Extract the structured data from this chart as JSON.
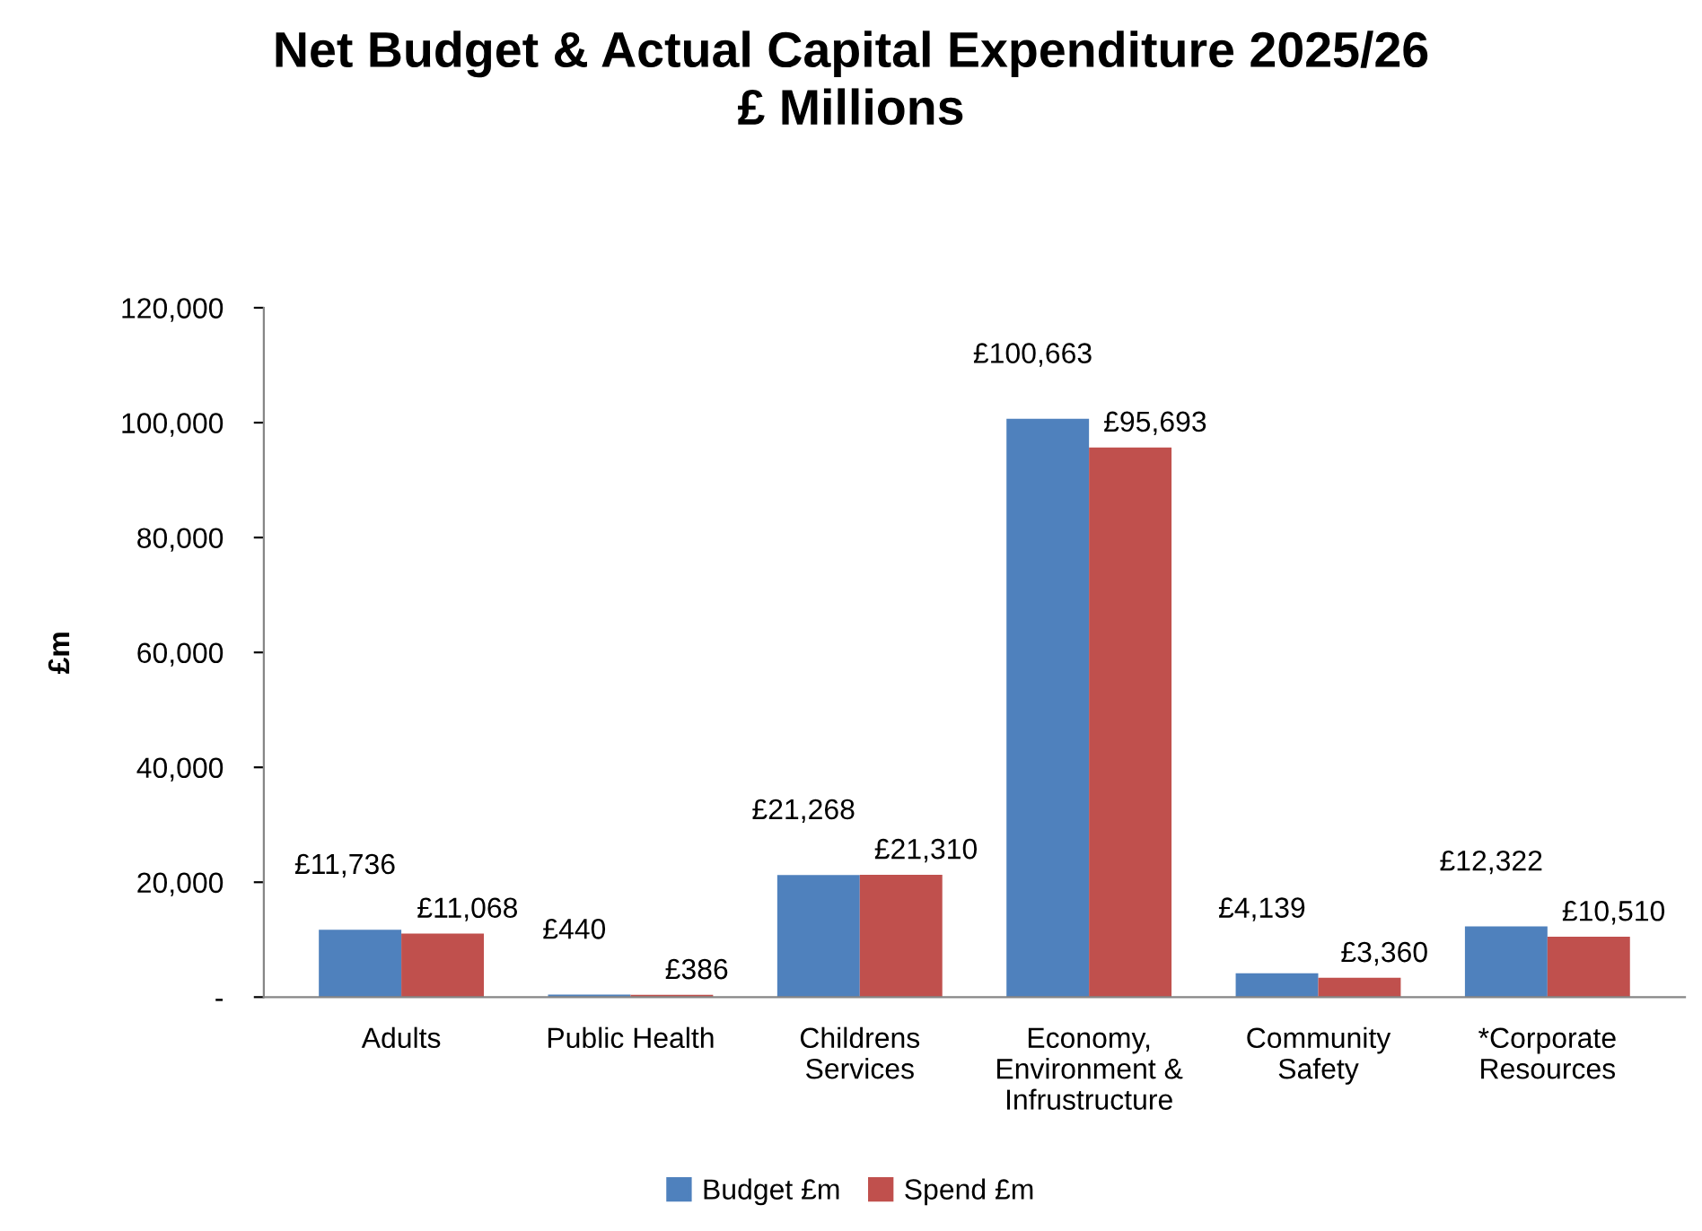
{
  "chart_data": {
    "type": "bar",
    "title": "Net Budget & Actual Capital Expenditure 2025/26\n£ Millions",
    "ylabel": "£m",
    "categories": [
      "Adults",
      "Public Health",
      "Childrens\nServices",
      "Economy,\nEnvironment &\nInfrustructure",
      "Community\nSafety",
      "*Corporate\nResources"
    ],
    "series": [
      {
        "name": "Budget £m",
        "color": "#4f81bd",
        "values": [
          11736,
          440,
          21268,
          100663,
          4139,
          12322
        ],
        "value_labels": [
          "£11,736",
          "£440",
          "£21,268",
          "£100,663",
          "£4,139",
          "£12,322"
        ]
      },
      {
        "name": "Spend £m",
        "color": "#c0504d",
        "values": [
          11068,
          386,
          21310,
          95693,
          3360,
          10510
        ],
        "value_labels": [
          "£11,068",
          "£386",
          "£21,310",
          "£95,693",
          "£3,360",
          "£10,510"
        ]
      }
    ],
    "ylim": [
      0,
      120000
    ],
    "yticks": [
      {
        "value": 0,
        "label": "-"
      },
      {
        "value": 20000,
        "label": "20,000"
      },
      {
        "value": 40000,
        "label": "40,000"
      },
      {
        "value": 60000,
        "label": "60,000"
      },
      {
        "value": 80000,
        "label": "80,000"
      },
      {
        "value": 100000,
        "label": "100,000"
      },
      {
        "value": 120000,
        "label": "120,000"
      }
    ],
    "grid": false,
    "legend": "bottom"
  }
}
